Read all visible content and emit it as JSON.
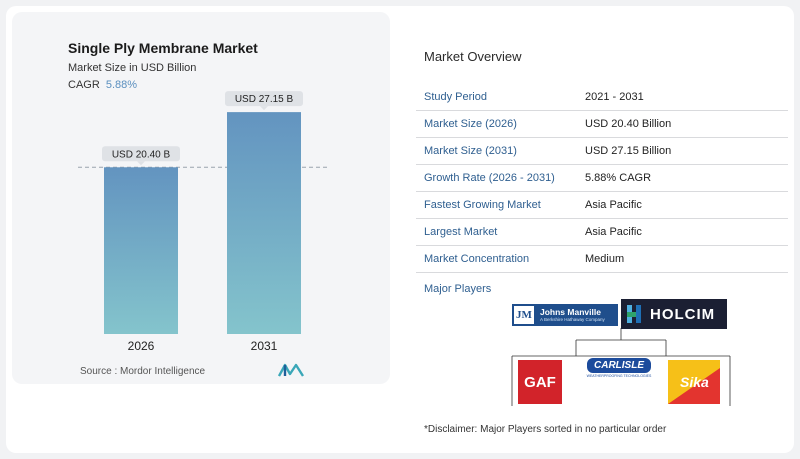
{
  "chart": {
    "title": "Single Ply Membrane Market",
    "subtitle": "Market Size in USD Billion",
    "cagr_label": "CAGR",
    "cagr_value": "5.88%",
    "source": "Source : Mordor Intelligence"
  },
  "chart_data": {
    "type": "bar",
    "categories": [
      "2026",
      "2031"
    ],
    "values": [
      20.4,
      27.15
    ],
    "data_labels": [
      "USD 20.40 B",
      "USD 27.15 B"
    ],
    "title": "Single Ply Membrane Market",
    "xlabel": "",
    "ylabel": "",
    "ylim": [
      0,
      29
    ],
    "grid": false,
    "reference_line": "dashed at 2026 value",
    "bar_color_top": "#6394c0",
    "bar_color_bottom": "#84c4cc"
  },
  "overview": {
    "title": "Market Overview",
    "rows": [
      {
        "key": "Study Period",
        "value": "2021 - 2031"
      },
      {
        "key": "Market Size (2026)",
        "value": "USD 20.40 Billion"
      },
      {
        "key": "Market Size (2031)",
        "value": "USD 27.15 Billion"
      },
      {
        "key": "Growth Rate (2026 - 2031)",
        "value": "5.88% CAGR"
      },
      {
        "key": "Fastest Growing Market",
        "value": "Asia Pacific"
      },
      {
        "key": "Largest Market",
        "value": "Asia Pacific"
      },
      {
        "key": "Market Concentration",
        "value": "Medium"
      }
    ]
  },
  "players": {
    "title": "Major Players",
    "johns_manville": "Johns Manville",
    "johns_manville_tag": "A Berkshire Hathaway Company",
    "holcim": "HOLCIM",
    "gaf": "GAF",
    "carlisle": "CARLISLE",
    "carlisle_tag": "WEATHERPROOFING TECHNOLOGIES",
    "sika": "Sika"
  },
  "disclaimer": "*Disclaimer: Major Players sorted in no particular order",
  "colors": {
    "accent_text": "#2f5f90",
    "cagr": "#5a8fbf",
    "jm_blue": "#1f4e8c",
    "holcim_dark": "#1b1f33",
    "gaf_red": "#d2232a",
    "carlisle_blue": "#1c4b9c",
    "sika_yellow": "#f6c018"
  }
}
